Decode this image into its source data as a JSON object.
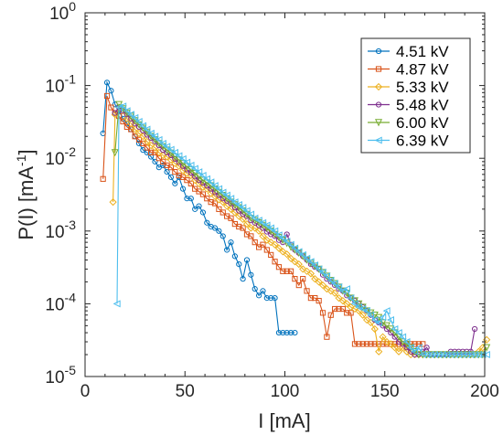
{
  "chart_data": {
    "type": "line",
    "xlabel": "I [mA]",
    "ylabel": {
      "base": "P(I) [mA",
      "sup": "-1",
      "end": "]"
    },
    "xlim": [
      0,
      200
    ],
    "ylim": [
      1e-05,
      1
    ],
    "yscale": "log",
    "grid": false,
    "legend_position": "top-right",
    "xticks": [
      "0",
      "50",
      "100",
      "150",
      "200"
    ],
    "yticks": [
      {
        "value": 1,
        "base": "10",
        "exp": "0"
      },
      {
        "value": 0.1,
        "base": "10",
        "exp": "-1"
      },
      {
        "value": 0.01,
        "base": "10",
        "exp": "-2"
      },
      {
        "value": 0.001,
        "base": "10",
        "exp": "-3"
      },
      {
        "value": 0.0001,
        "base": "10",
        "exp": "-4"
      },
      {
        "value": 1e-05,
        "base": "10",
        "exp": "-5"
      }
    ],
    "series": [
      {
        "name": "4.51 kV",
        "color": "#0072BD",
        "marker": "circle",
        "x": [
          9,
          11,
          13,
          15,
          17,
          19,
          21,
          23,
          25,
          27,
          29,
          31,
          33,
          35,
          37,
          39,
          41,
          43,
          45,
          47,
          49,
          51,
          53,
          55,
          57,
          59,
          61,
          63,
          65,
          67,
          69,
          71,
          73,
          75,
          77,
          79,
          81,
          83,
          85,
          87,
          89,
          91,
          93,
          95,
          97,
          99,
          101,
          103,
          105
        ],
        "y": [
          0.022,
          0.11,
          0.085,
          0.055,
          0.045,
          0.035,
          0.03,
          0.025,
          0.02,
          0.016,
          0.013,
          0.012,
          0.0105,
          0.009,
          0.0075,
          0.008,
          0.0065,
          0.0055,
          0.0045,
          0.0055,
          0.0038,
          0.0028,
          0.0028,
          0.002,
          0.0022,
          0.0018,
          0.0013,
          0.00115,
          0.0011,
          0.001,
          0.00085,
          0.00055,
          0.0007,
          0.00045,
          0.00035,
          0.00022,
          0.0004,
          0.00025,
          0.00016,
          0.00013,
          0.00015,
          0.00012,
          0.00012,
          0.00012,
          4e-05,
          4e-05,
          4e-05,
          4e-05,
          4e-05
        ]
      },
      {
        "name": "4.87 kV",
        "color": "#D95319",
        "marker": "square",
        "x": [
          9,
          11,
          13,
          15,
          17,
          19,
          21,
          23,
          25,
          27,
          29,
          31,
          33,
          35,
          37,
          39,
          41,
          43,
          45,
          47,
          49,
          51,
          53,
          55,
          57,
          59,
          61,
          63,
          65,
          67,
          69,
          71,
          73,
          75,
          77,
          79,
          81,
          83,
          85,
          87,
          89,
          91,
          93,
          95,
          97,
          99,
          101,
          103,
          105,
          107,
          109,
          111,
          113,
          115,
          117,
          119,
          121,
          123,
          125,
          127,
          129,
          131,
          133,
          135,
          137,
          139,
          141,
          143,
          145,
          147,
          149,
          151,
          153,
          155,
          157,
          159,
          161,
          163,
          165,
          167,
          169
        ],
        "y": [
          0.0052,
          0.072,
          0.05,
          0.042,
          0.038,
          0.032,
          0.027,
          0.025,
          0.02,
          0.018,
          0.016,
          0.014,
          0.012,
          0.012,
          0.01,
          0.009,
          0.008,
          0.0075,
          0.0065,
          0.0058,
          0.0055,
          0.005,
          0.0045,
          0.0038,
          0.0035,
          0.0032,
          0.0028,
          0.0025,
          0.0024,
          0.002,
          0.0018,
          0.0016,
          0.0015,
          0.00125,
          0.00115,
          0.0011,
          0.0009,
          0.00085,
          0.0007,
          0.0006,
          0.00065,
          0.00055,
          0.00047,
          0.00038,
          0.00032,
          0.00028,
          0.00028,
          0.00028,
          0.00022,
          0.00018,
          0.00022,
          0.00015,
          0.00012,
          0.00012,
          0.00011,
          7.5e-05,
          3.5e-05,
          7e-05,
          8.5e-05,
          8.5e-05,
          8.5e-05,
          7.5e-05,
          7.5e-05,
          2.8e-05,
          2.8e-05,
          2.8e-05,
          2.8e-05,
          2.8e-05,
          2.8e-05,
          2.8e-05,
          2.8e-05,
          2.8e-05,
          2.8e-05,
          2.8e-05,
          2.8e-05,
          2.8e-05,
          2.8e-05,
          2.8e-05,
          2.8e-05,
          2.8e-05,
          2.8e-05
        ]
      },
      {
        "name": "5.33 kV",
        "color": "#EDB120",
        "marker": "diamond",
        "x": [
          14,
          15,
          17,
          19,
          21,
          23,
          25,
          27,
          29,
          31,
          33,
          35,
          37,
          39,
          41,
          43,
          45,
          47,
          49,
          51,
          53,
          55,
          57,
          59,
          61,
          63,
          65,
          67,
          69,
          71,
          73,
          75,
          77,
          79,
          81,
          83,
          85,
          87,
          89,
          91,
          93,
          95,
          97,
          99,
          101,
          103,
          105,
          107,
          109,
          111,
          113,
          115,
          117,
          119,
          121,
          123,
          125,
          127,
          129,
          131,
          133,
          135,
          137,
          139,
          141,
          143,
          145,
          147,
          149,
          151,
          153,
          155,
          157,
          159,
          161,
          163,
          165,
          167,
          169,
          171,
          173,
          175,
          177,
          179,
          181,
          183,
          185,
          187,
          189,
          191,
          193,
          195,
          197,
          199,
          201
        ],
        "y": [
          0.0025,
          0.04,
          0.05,
          0.045,
          0.035,
          0.03,
          0.025,
          0.022,
          0.02,
          0.017,
          0.015,
          0.014,
          0.012,
          0.011,
          0.0105,
          0.0095,
          0.0085,
          0.0078,
          0.0068,
          0.0062,
          0.0058,
          0.005,
          0.0045,
          0.004,
          0.0038,
          0.0033,
          0.003,
          0.0027,
          0.0025,
          0.0022,
          0.002,
          0.0018,
          0.0016,
          0.00145,
          0.00125,
          0.0011,
          0.0011,
          0.001,
          0.00085,
          0.00075,
          0.0007,
          0.00065,
          0.00058,
          0.00052,
          0.00048,
          0.00042,
          0.00038,
          0.00035,
          0.0003,
          0.00028,
          0.00026,
          0.00022,
          0.0002,
          0.00018,
          0.00016,
          0.00015,
          0.00014,
          0.00012,
          0.00011,
          0.0001,
          9e-05,
          8.5e-05,
          8e-05,
          7e-05,
          6e-05,
          5.5e-05,
          4.5e-05,
          2.2e-05,
          3.5e-05,
          3e-05,
          2.8e-05,
          2.5e-05,
          2.2e-05,
          2.5e-05,
          2.2e-05,
          2e-05,
          2e-05,
          2e-05,
          2e-05,
          2e-05,
          2e-05,
          2e-05,
          2e-05,
          2e-05,
          2e-05,
          2e-05,
          2e-05,
          2e-05,
          2e-05,
          2e-05,
          2e-05,
          2e-05,
          2.2e-05,
          2.5e-05,
          3.2e-05
        ]
      },
      {
        "name": "5.48 kV",
        "color": "#7E2F8E",
        "marker": "circle",
        "x": [
          15,
          17,
          19,
          21,
          23,
          25,
          27,
          29,
          31,
          33,
          35,
          37,
          39,
          41,
          43,
          45,
          47,
          49,
          51,
          53,
          55,
          57,
          59,
          61,
          63,
          65,
          67,
          69,
          71,
          73,
          75,
          77,
          79,
          81,
          83,
          85,
          87,
          89,
          91,
          93,
          95,
          97,
          99,
          101,
          103,
          105,
          107,
          109,
          111,
          113,
          115,
          117,
          119,
          121,
          123,
          125,
          127,
          129,
          131,
          133,
          135,
          137,
          139,
          141,
          143,
          145,
          147,
          149,
          151,
          153,
          155,
          157,
          159,
          161,
          163,
          165,
          167,
          169,
          171,
          173,
          175,
          177,
          179,
          181,
          183,
          185,
          187,
          189,
          191,
          193,
          195
        ],
        "y": [
          0.042,
          0.05,
          0.045,
          0.04,
          0.035,
          0.03,
          0.027,
          0.024,
          0.021,
          0.019,
          0.017,
          0.015,
          0.013,
          0.012,
          0.011,
          0.0098,
          0.0088,
          0.0078,
          0.007,
          0.0063,
          0.0056,
          0.005,
          0.0046,
          0.0042,
          0.0038,
          0.0034,
          0.0031,
          0.0028,
          0.0026,
          0.0024,
          0.0021,
          0.0019,
          0.0017,
          0.0016,
          0.0014,
          0.0013,
          0.0012,
          0.0011,
          0.00098,
          0.0009,
          0.00085,
          0.00075,
          0.0007,
          0.0009,
          0.00065,
          0.00055,
          0.0005,
          0.00045,
          0.0004,
          0.00035,
          0.00032,
          0.0003,
          0.00025,
          0.00022,
          0.0002,
          0.00018,
          0.00016,
          0.00015,
          0.00013,
          0.00012,
          0.00011,
          0.0001,
          9e-05,
          8e-05,
          7e-05,
          6e-05,
          5.5e-05,
          5e-05,
          4.5e-05,
          4e-05,
          3.5e-05,
          3e-05,
          2.8e-05,
          2.5e-05,
          2.2e-05,
          2e-05,
          2e-05,
          2.2e-05,
          2.5e-05,
          2e-05,
          2e-05,
          2e-05,
          2e-05,
          2e-05,
          2.2e-05,
          2.2e-05,
          2.2e-05,
          2.2e-05,
          2.2e-05,
          2.2e-05,
          4.5e-05
        ]
      },
      {
        "name": "6.00 kV",
        "color": "#77AC30",
        "marker": "triangle-down",
        "x": [
          15,
          17,
          19,
          21,
          23,
          25,
          27,
          29,
          31,
          33,
          35,
          37,
          39,
          41,
          43,
          45,
          47,
          49,
          51,
          53,
          55,
          57,
          59,
          61,
          63,
          65,
          67,
          69,
          71,
          73,
          75,
          77,
          79,
          81,
          83,
          85,
          87,
          89,
          91,
          93,
          95,
          97,
          99,
          101,
          103,
          105,
          107,
          109,
          111,
          113,
          115,
          117,
          119,
          121,
          123,
          125,
          127,
          129,
          131,
          133,
          135,
          137,
          139,
          141,
          143,
          145,
          147,
          149,
          151,
          153,
          155,
          157,
          159,
          161,
          163,
          165,
          167,
          169,
          171,
          173,
          175,
          177,
          179,
          181,
          183,
          185,
          187,
          189,
          191,
          193,
          195,
          197,
          199,
          201
        ],
        "y": [
          0.012,
          0.055,
          0.048,
          0.042,
          0.038,
          0.033,
          0.029,
          0.026,
          0.023,
          0.02,
          0.018,
          0.016,
          0.0145,
          0.013,
          0.0118,
          0.0105,
          0.0095,
          0.0085,
          0.0077,
          0.007,
          0.0062,
          0.0056,
          0.005,
          0.0046,
          0.0042,
          0.0038,
          0.0034,
          0.0031,
          0.0028,
          0.0025,
          0.0023,
          0.0021,
          0.0019,
          0.0017,
          0.0015,
          0.0014,
          0.0013,
          0.0012,
          0.0011,
          0.001,
          0.0009,
          0.00082,
          0.00075,
          0.00068,
          0.0006,
          0.00055,
          0.0005,
          0.00045,
          0.0004,
          0.00036,
          0.00033,
          0.0003,
          0.00027,
          0.00024,
          0.00021,
          0.00019,
          0.00017,
          0.00015,
          0.00014,
          0.00012,
          0.00011,
          0.0001,
          9e-05,
          8e-05,
          7.5e-05,
          7e-05,
          6.5e-05,
          5.5e-05,
          5e-05,
          4.5e-05,
          4e-05,
          3.5e-05,
          3e-05,
          2.8e-05,
          2.5e-05,
          2.2e-05,
          2e-05,
          2e-05,
          2e-05,
          2e-05,
          2e-05,
          2e-05,
          2e-05,
          2e-05,
          2e-05,
          2e-05,
          2e-05,
          2e-05,
          2e-05,
          2e-05,
          2e-05,
          2e-05,
          2e-05,
          2.5e-05
        ]
      },
      {
        "name": "6.39 kV",
        "color": "#4DBEEE",
        "marker": "triangle-left",
        "x": [
          16,
          17,
          19,
          21,
          23,
          25,
          27,
          29,
          31,
          33,
          35,
          37,
          39,
          41,
          43,
          45,
          47,
          49,
          51,
          53,
          55,
          57,
          59,
          61,
          63,
          65,
          67,
          69,
          71,
          73,
          75,
          77,
          79,
          81,
          83,
          85,
          87,
          89,
          91,
          93,
          95,
          97,
          99,
          101,
          103,
          105,
          107,
          109,
          111,
          113,
          115,
          117,
          119,
          121,
          123,
          125,
          127,
          129,
          131,
          133,
          135,
          137,
          139,
          141,
          143,
          145,
          147,
          149,
          151,
          153,
          155,
          157,
          159,
          161,
          163,
          165,
          167,
          169,
          171,
          173,
          175,
          177,
          179,
          181,
          183,
          185,
          187,
          189,
          191,
          193,
          195,
          197,
          199,
          201
        ],
        "y": [
          0.0001,
          0.05,
          0.052,
          0.045,
          0.04,
          0.036,
          0.032,
          0.028,
          0.025,
          0.022,
          0.02,
          0.018,
          0.016,
          0.0145,
          0.0132,
          0.012,
          0.0108,
          0.0098,
          0.0088,
          0.008,
          0.0072,
          0.0065,
          0.0058,
          0.0052,
          0.0047,
          0.0042,
          0.0038,
          0.0034,
          0.0031,
          0.0028,
          0.0025,
          0.0023,
          0.0021,
          0.0019,
          0.0017,
          0.0015,
          0.0014,
          0.0013,
          0.0012,
          0.0011,
          0.001,
          0.00088,
          0.0008,
          0.00072,
          0.00065,
          0.00058,
          0.00052,
          0.00047,
          0.00042,
          0.00038,
          0.00034,
          0.0003,
          0.00027,
          0.00024,
          0.00021,
          0.00019,
          0.00017,
          0.00015,
          0.00016,
          0.00012,
          0.0001,
          9e-05,
          8.5e-05,
          8e-05,
          7e-05,
          6e-05,
          5.5e-05,
          6.5e-05,
          8e-05,
          6e-05,
          4.5e-05,
          4e-05,
          3.5e-05,
          3e-05,
          2.5e-05,
          2.2e-05,
          2.5e-05,
          2e-05,
          2e-05,
          2e-05,
          2e-05,
          2e-05,
          2e-05,
          2e-05,
          2e-05,
          2e-05,
          2e-05,
          2e-05,
          2e-05,
          2e-05,
          2e-05,
          2e-05,
          2e-05,
          2e-05
        ]
      }
    ]
  }
}
